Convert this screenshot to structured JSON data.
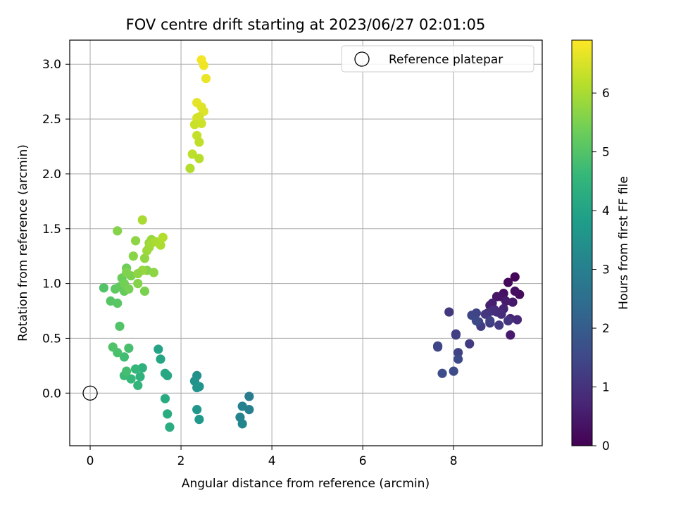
{
  "chart_data": {
    "type": "scatter",
    "title": "FOV centre drift starting at 2023/06/27 02:01:05",
    "xlabel": "Angular distance from reference (arcmin)",
    "ylabel": "Rotation from reference (arcmin)",
    "xlim": [
      -0.45,
      9.95
    ],
    "ylim": [
      -0.48,
      3.22
    ],
    "xticks": [
      0,
      2,
      4,
      6,
      8
    ],
    "xtick_labels": [
      "0",
      "2",
      "4",
      "6",
      "8"
    ],
    "yticks": [
      0.0,
      0.5,
      1.0,
      1.5,
      2.0,
      2.5,
      3.0
    ],
    "ytick_labels": [
      "0.0",
      "0.5",
      "1.0",
      "1.5",
      "2.0",
      "2.5",
      "3.0"
    ],
    "grid": true,
    "legend": {
      "position": "top-right",
      "entries": [
        {
          "label": "Reference platepar",
          "marker": "open-circle",
          "color": "#000000"
        }
      ]
    },
    "colorbar": {
      "label": "Hours from first FF file",
      "colormap": "viridis",
      "range": [
        0,
        6.9
      ],
      "ticks": [
        0,
        1,
        2,
        3,
        4,
        5,
        6
      ],
      "tick_labels": [
        "0",
        "1",
        "2",
        "3",
        "4",
        "5",
        "6"
      ]
    },
    "reference_point": {
      "x": 0,
      "y": 0
    },
    "series": [
      {
        "x": [
          9.35,
          9.2,
          9.45,
          9.1,
          9.35,
          9.05,
          8.95,
          9.3,
          9.15,
          8.85,
          8.8,
          9.1,
          9.25,
          8.9,
          9.4,
          8.95,
          9.05,
          8.85,
          8.75,
          9.2,
          8.7,
          8.8,
          9.0,
          8.6,
          8.55,
          8.8,
          9.25,
          8.5,
          8.4,
          8.5
        ],
        "y": [
          1.06,
          1.01,
          0.9,
          0.91,
          0.93,
          0.88,
          0.88,
          0.83,
          0.84,
          0.82,
          0.8,
          0.77,
          0.68,
          0.76,
          0.67,
          0.74,
          0.72,
          0.75,
          0.73,
          0.66,
          0.72,
          0.64,
          0.62,
          0.61,
          0.65,
          0.66,
          0.53,
          0.73,
          0.71,
          0.66
        ],
        "c": [
          0.1,
          0.15,
          0.2,
          0.25,
          0.3,
          0.35,
          0.4,
          0.45,
          0.5,
          0.55,
          0.6,
          0.65,
          0.7,
          0.75,
          0.8,
          0.85,
          0.9,
          0.95,
          1.0,
          1.05,
          1.1,
          1.15,
          1.2,
          1.25,
          1.3,
          1.35,
          0.5,
          1.4,
          1.45,
          1.5
        ]
      },
      {
        "x": [
          7.9,
          8.35,
          8.05,
          8.05,
          8.1,
          7.65,
          7.65,
          8.1,
          8.0,
          7.75
        ],
        "y": [
          0.74,
          0.45,
          0.53,
          0.54,
          0.37,
          0.43,
          0.42,
          0.31,
          0.2,
          0.18
        ],
        "c": [
          1.1,
          1.2,
          1.25,
          1.3,
          1.35,
          1.4,
          1.45,
          1.5,
          1.55,
          1.6
        ]
      },
      {
        "x": [
          3.5,
          3.5,
          3.35,
          3.3,
          3.35,
          2.4,
          2.35,
          2.3,
          2.35,
          2.4,
          2.35,
          2.4
        ],
        "y": [
          -0.03,
          -0.15,
          -0.12,
          -0.22,
          -0.28,
          0.06,
          0.16,
          0.11,
          0.05,
          0.06,
          -0.15,
          -0.24
        ],
        "c": [
          2.9,
          3.0,
          3.05,
          3.1,
          3.15,
          3.4,
          3.45,
          3.5,
          3.55,
          3.6,
          3.65,
          3.7
        ]
      },
      {
        "x": [
          1.5,
          1.55,
          1.65,
          1.7,
          1.65,
          1.7,
          1.75,
          1.15,
          1.1,
          1.05,
          1.0,
          0.9,
          0.75,
          0.75,
          0.8,
          0.85,
          0.6,
          0.5,
          0.65
        ],
        "y": [
          0.4,
          0.31,
          0.18,
          0.16,
          -0.05,
          -0.19,
          -0.31,
          0.23,
          0.15,
          0.07,
          0.22,
          0.13,
          0.16,
          0.33,
          0.2,
          0.41,
          0.37,
          0.42,
          0.61
        ],
        "c": [
          4.0,
          4.05,
          4.1,
          4.15,
          4.2,
          4.25,
          4.3,
          4.4,
          4.45,
          4.5,
          4.55,
          4.6,
          4.7,
          4.75,
          4.8,
          4.85,
          4.9,
          4.95,
          5.0
        ]
      },
      {
        "x": [
          0.3,
          0.45,
          0.6,
          0.55,
          0.65,
          0.75,
          0.7,
          0.8,
          0.75,
          0.85,
          0.9,
          0.8,
          1.05,
          0.95,
          1.0,
          1.2,
          1.25,
          1.3,
          1.35,
          1.4,
          1.2,
          1.15,
          1.25,
          1.3,
          1.35,
          1.45,
          1.55,
          1.6,
          1.05,
          0.6,
          1.15
        ],
        "y": [
          0.96,
          0.84,
          0.82,
          0.95,
          0.97,
          0.93,
          1.05,
          1.14,
          1.0,
          0.95,
          1.07,
          1.1,
          1.0,
          1.25,
          1.39,
          0.93,
          1.12,
          1.37,
          1.4,
          1.1,
          1.23,
          1.12,
          1.3,
          1.33,
          1.37,
          1.38,
          1.35,
          1.42,
          1.09,
          1.48,
          1.58
        ],
        "c": [
          5.0,
          5.05,
          5.1,
          5.15,
          5.2,
          5.25,
          5.3,
          5.35,
          5.4,
          5.45,
          5.5,
          5.55,
          5.6,
          5.65,
          5.7,
          5.5,
          5.6,
          5.75,
          5.8,
          5.7,
          5.75,
          5.8,
          5.85,
          5.9,
          5.95,
          6.0,
          6.05,
          6.1,
          5.7,
          5.6,
          6.0
        ]
      },
      {
        "x": [
          2.45,
          2.5,
          2.55,
          2.35,
          2.45,
          2.5,
          2.35,
          2.4,
          2.45,
          2.3,
          2.35,
          2.4,
          2.25,
          2.4,
          2.2
        ],
        "y": [
          3.04,
          2.99,
          2.87,
          2.65,
          2.61,
          2.57,
          2.51,
          2.52,
          2.46,
          2.45,
          2.35,
          2.29,
          2.18,
          2.14,
          2.05
        ],
        "c": [
          6.8,
          6.75,
          6.7,
          6.65,
          6.6,
          6.55,
          6.5,
          6.45,
          6.4,
          6.35,
          6.3,
          6.25,
          6.2,
          6.15,
          6.1
        ]
      }
    ]
  }
}
